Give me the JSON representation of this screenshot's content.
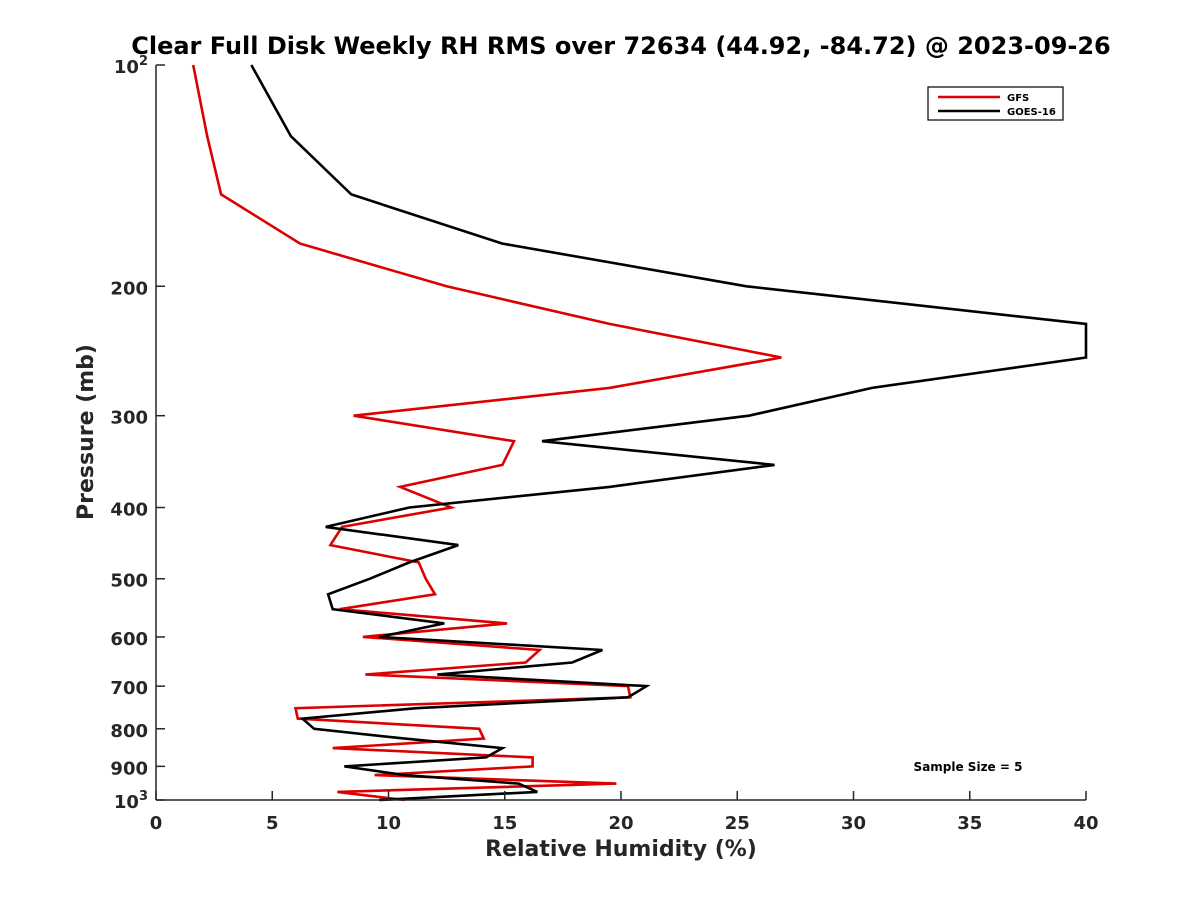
{
  "chart_data": {
    "type": "line",
    "title": "Clear Full Disk Weekly RH RMS over 72634 (44.92, -84.72) @ 2023-09-26",
    "xlabel": "Relative Humidity (%)",
    "ylabel": "Pressure (mb)",
    "xlim": [
      0,
      40
    ],
    "ylim": [
      100,
      1000
    ],
    "y_scale": "log",
    "y_reversed": true,
    "x_ticks": [
      0,
      5,
      10,
      15,
      20,
      25,
      30,
      35,
      40
    ],
    "x_tick_labels": [
      "0",
      "5",
      "10",
      "15",
      "20",
      "25",
      "30",
      "35",
      "40"
    ],
    "y_ticks": [
      100,
      200,
      300,
      400,
      500,
      600,
      700,
      800,
      900,
      1000
    ],
    "y_tick_labels": [
      {
        "base": "10",
        "exp": "2"
      },
      {
        "text": "200"
      },
      {
        "text": "300"
      },
      {
        "text": "400"
      },
      {
        "text": "500"
      },
      {
        "text": "600"
      },
      {
        "text": "700"
      },
      {
        "text": "800"
      },
      {
        "text": "900"
      },
      {
        "base": "10",
        "exp": "3"
      }
    ],
    "legend_position": "top-right",
    "annotation": "Sample Size = 5",
    "series": [
      {
        "name": "GFS",
        "color": "#dd0000",
        "points": [
          [
            1.6,
            100
          ],
          [
            2.2,
            125
          ],
          [
            2.8,
            150
          ],
          [
            6.2,
            175
          ],
          [
            12.5,
            200
          ],
          [
            19.5,
            225
          ],
          [
            26.9,
            250
          ],
          [
            19.5,
            275
          ],
          [
            8.5,
            300
          ],
          [
            15.4,
            325
          ],
          [
            14.9,
            350
          ],
          [
            10.5,
            375
          ],
          [
            12.7,
            400
          ],
          [
            8.0,
            425
          ],
          [
            7.5,
            450
          ],
          [
            11.3,
            475
          ],
          [
            11.6,
            500
          ],
          [
            12.0,
            525
          ],
          [
            7.9,
            550
          ],
          [
            15.1,
            575
          ],
          [
            8.9,
            600
          ],
          [
            16.5,
            625
          ],
          [
            15.9,
            650
          ],
          [
            9.0,
            675
          ],
          [
            20.3,
            700
          ],
          [
            20.4,
            725
          ],
          [
            6.0,
            750
          ],
          [
            6.1,
            775
          ],
          [
            13.9,
            800
          ],
          [
            14.1,
            825
          ],
          [
            7.6,
            850
          ],
          [
            16.2,
            875
          ],
          [
            16.2,
            900
          ],
          [
            9.4,
            925
          ],
          [
            19.8,
            950
          ],
          [
            7.8,
            975
          ],
          [
            10.7,
            1000
          ]
        ]
      },
      {
        "name": "GOES-16",
        "color": "#000000",
        "points": [
          [
            4.1,
            100
          ],
          [
            5.8,
            125
          ],
          [
            8.4,
            150
          ],
          [
            14.9,
            175
          ],
          [
            25.4,
            200
          ],
          [
            40.0,
            225
          ],
          [
            40.0,
            250
          ],
          [
            30.8,
            275
          ],
          [
            25.5,
            300
          ],
          [
            16.6,
            325
          ],
          [
            26.6,
            350
          ],
          [
            19.5,
            375
          ],
          [
            10.9,
            400
          ],
          [
            7.3,
            425
          ],
          [
            13.0,
            450
          ],
          [
            10.9,
            475
          ],
          [
            9.2,
            500
          ],
          [
            7.4,
            525
          ],
          [
            7.6,
            550
          ],
          [
            12.4,
            575
          ],
          [
            9.6,
            600
          ],
          [
            19.2,
            625
          ],
          [
            17.9,
            650
          ],
          [
            12.1,
            675
          ],
          [
            21.1,
            700
          ],
          [
            20.3,
            725
          ],
          [
            11.2,
            750
          ],
          [
            6.3,
            775
          ],
          [
            6.8,
            800
          ],
          [
            10.7,
            825
          ],
          [
            14.9,
            850
          ],
          [
            14.2,
            875
          ],
          [
            8.1,
            900
          ],
          [
            10.7,
            925
          ],
          [
            15.6,
            950
          ],
          [
            16.4,
            975
          ],
          [
            9.6,
            1000
          ]
        ]
      }
    ]
  }
}
